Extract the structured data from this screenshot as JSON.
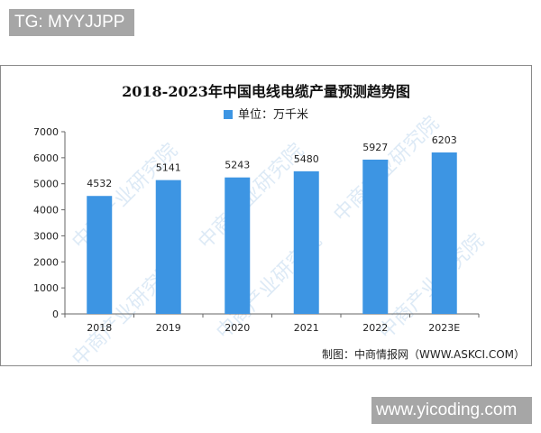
{
  "overlay": {
    "top_tag": "TG: MYYJJPP",
    "bottom_tag": "www.yicoding.com"
  },
  "watermark": "中商产业研究院",
  "chart_data": {
    "type": "bar",
    "title": "2018-2023年中国电线电缆产量预测趋势图",
    "legend": [
      {
        "name": "单位：万千米",
        "color": "#3d95e3"
      }
    ],
    "legend_position": "top",
    "categories": [
      "2018",
      "2019",
      "2020",
      "2021",
      "2022",
      "2023E"
    ],
    "series": [
      {
        "name": "单位：万千米",
        "values": [
          4532,
          5141,
          5243,
          5480,
          5927,
          6203
        ]
      }
    ],
    "data_labels": [
      "4532",
      "5141",
      "5243",
      "5480",
      "5927",
      "6203"
    ],
    "xlabel": "",
    "ylabel": "",
    "ylim": [
      0,
      7000
    ],
    "yticks": [
      0,
      1000,
      2000,
      3000,
      4000,
      5000,
      6000,
      7000
    ],
    "grid": false,
    "bar_color": "#3d95e3",
    "source": "制图：中商情报网（WWW.ASKCI.COM）"
  }
}
